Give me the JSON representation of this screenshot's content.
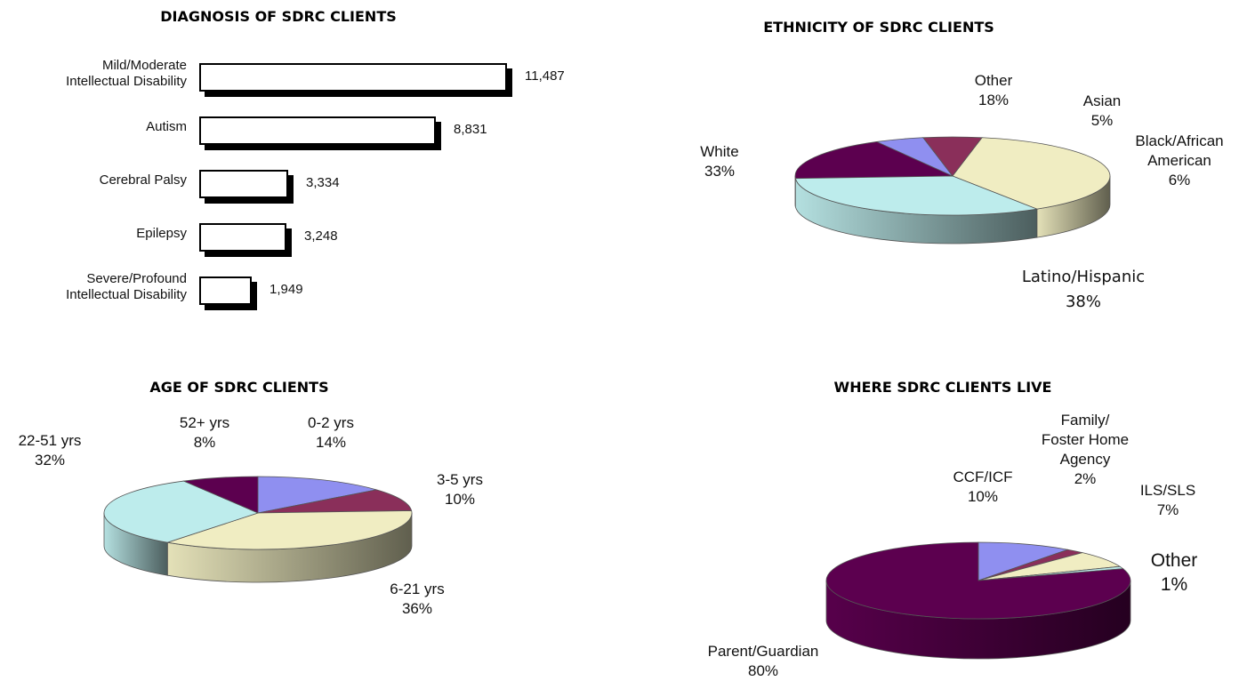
{
  "chart_data": [
    {
      "type": "bar",
      "title": "DIAGNOSIS OF SDRC CLIENTS",
      "categories": [
        "Mild/Moderate\nIntellectual Disability",
        "Autism",
        "Cerebral Palsy",
        "Epilepsy",
        "Severe/Profound\nIntellectual Disability"
      ],
      "values": [
        11487,
        8831,
        3334,
        3248,
        1949
      ],
      "value_labels": [
        "11,487",
        "8,831",
        "3,334",
        "3,248",
        "1,949"
      ],
      "orientation": "horizontal",
      "grid": false
    },
    {
      "type": "pie",
      "title": "ETHNICITY OF SDRC CLIENTS",
      "slices": [
        {
          "name": "Other",
          "value": 18,
          "label": "18%",
          "color": "#5c004f"
        },
        {
          "name": "Asian",
          "value": 5,
          "label": "5%",
          "color": "#8f8ff0"
        },
        {
          "name": "Black/African\nAmerican",
          "value": 6,
          "label": "6%",
          "color": "#8a2f5a"
        },
        {
          "name": "Latino/Hispanic",
          "value": 38,
          "label": "38%",
          "color": "#f0edc2"
        },
        {
          "name": "White",
          "value": 33,
          "label": "33%",
          "color": "#bdecec"
        }
      ]
    },
    {
      "type": "pie",
      "title": "AGE OF SDRC CLIENTS",
      "slices": [
        {
          "name": "0-2 yrs",
          "value": 14,
          "label": "14%",
          "color": "#8f8ff0"
        },
        {
          "name": "3-5 yrs",
          "value": 10,
          "label": "10%",
          "color": "#8a2f5a"
        },
        {
          "name": "6-21 yrs",
          "value": 36,
          "label": "36%",
          "color": "#f0edc2"
        },
        {
          "name": "22-51 yrs",
          "value": 32,
          "label": "32%",
          "color": "#bdecec"
        },
        {
          "name": "52+ yrs",
          "value": 8,
          "label": "8%",
          "color": "#5c004f"
        }
      ]
    },
    {
      "type": "pie",
      "title": "WHERE SDRC CLIENTS LIVE",
      "slices": [
        {
          "name": "CCF/ICF",
          "value": 10,
          "label": "10%",
          "color": "#8f8ff0"
        },
        {
          "name": "Family/\nFoster Home\nAgency",
          "value": 2,
          "label": "2%",
          "color": "#8a2f5a"
        },
        {
          "name": "ILS/SLS",
          "value": 7,
          "label": "7%",
          "color": "#f0edc2"
        },
        {
          "name": "Other",
          "value": 1,
          "label": "1%",
          "color": "#bdecec"
        },
        {
          "name": "Parent/Guardian",
          "value": 80,
          "label": "80%",
          "color": "#5c004f"
        }
      ]
    }
  ]
}
